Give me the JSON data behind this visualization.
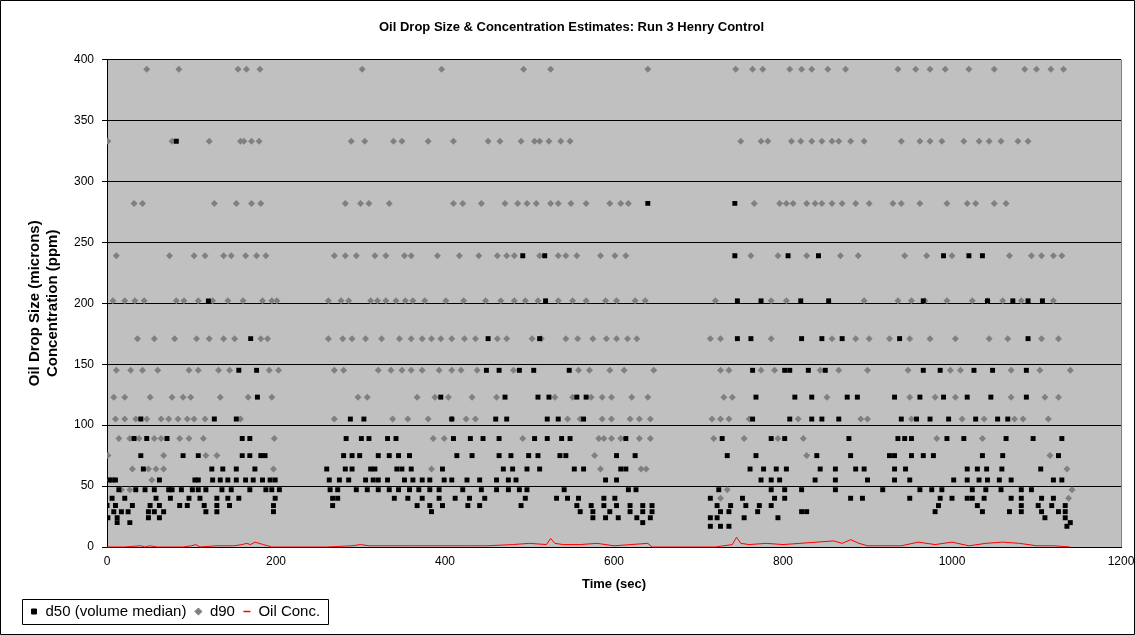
{
  "chart_data": {
    "type": "scatter",
    "title": "Oil Drop Size & Concentration Estimates: Run 3 Henry Control",
    "xlabel": "Time (sec)",
    "ylabel": "Oil Drop Size (microns)\nConcentration (ppm)",
    "xlim": [
      0,
      1200
    ],
    "xticks": [
      0,
      200,
      400,
      600,
      800,
      1000,
      1200
    ],
    "ylim": [
      0,
      400
    ],
    "yticks": [
      0,
      50,
      100,
      150,
      200,
      250,
      300,
      350,
      400
    ],
    "grid": "y",
    "legend": "bottom left",
    "series": [
      {
        "name": "d50 (volume median)",
        "type": "scatter",
        "marker": "square",
        "color": "#000000",
        "x": [
          82,
          640,
          743,
          492,
          518,
          743,
          806,
          842,
          990,
          1020,
          1036,
          120,
          519,
          746,
          774,
          821,
          854,
          966,
          1042,
          1072,
          1090,
          1107,
          170,
          451,
          512,
          746,
          762,
          822,
          846,
          870,
          938,
          1090,
          156,
          177,
          449,
          464,
          488,
          505,
          547,
          764,
          802,
          808,
          830,
          850,
          966,
          986,
          1026,
          1048,
          1088,
          178,
          395,
          471,
          510,
          523,
          556,
          567,
          768,
          814,
          834,
          876,
          888,
          932,
          962,
          990,
          1018,
          1046,
          1088,
          40,
          127,
          153,
          288,
          304,
          408,
          460,
          473,
          521,
          534,
          564,
          764,
          808,
          834,
          846,
          866,
          940,
          958,
          974,
          996,
          1028,
          1054,
          1066,
          32,
          47,
          71,
          160,
          169,
          283,
          301,
          310,
          332,
          342,
          410,
          430,
          445,
          464,
          506,
          521,
          538,
          548,
          614,
          728,
          786,
          802,
          878,
          936,
          944,
          952,
          994,
          1014,
          1064,
          1096,
          1130,
          40,
          90,
          108,
          160,
          169,
          182,
          187,
          280,
          290,
          299,
          321,
          334,
          345,
          358,
          414,
          432,
          464,
          478,
          499,
          510,
          536,
          543,
          603,
          625,
          734,
          768,
          840,
          880,
          926,
          932,
          952,
          966,
          978,
          1036,
          1060,
          1126,
          43,
          124,
          137,
          153,
          175,
          260,
          282,
          290,
          312,
          317,
          343,
          349,
          360,
          397,
          469,
          480,
          497,
          512,
          553,
          564,
          608,
          614,
          761,
          777,
          792,
          804,
          844,
          862,
          886,
          896,
          932,
          945,
          1018,
          1030,
          1041,
          1059,
          1105,
          4,
          10,
          62,
          104,
          108,
          125,
          134,
          143,
          153,
          164,
          173,
          184,
          193,
          199,
          263,
          275,
          286,
          306,
          315,
          321,
          332,
          352,
          362,
          373,
          382,
          399,
          408,
          426,
          441,
          461,
          475,
          484,
          590,
          603,
          774,
          786,
          796,
          838,
          862,
          900,
          932,
          950,
          1002,
          1018,
          1032,
          1042,
          1056,
          1070,
          1120,
          1130,
          14,
          34,
          45,
          56,
          73,
          77,
          88,
          101,
          108,
          117,
          136,
          147,
          169,
          188,
          195,
          204,
          264,
          273,
          295,
          308,
          321,
          334,
          345,
          358,
          369,
          382,
          393,
          421,
          443,
          461,
          475,
          488,
          497,
          541,
          617,
          626,
          724,
          786,
          802,
          822,
          862,
          918,
          962,
          976,
          988,
          1024,
          1040,
          1058,
          1082,
          1094,
          6,
          21,
          58,
          75,
          97,
          110,
          130,
          143,
          156,
          199,
          267,
          273,
          340,
          356,
          373,
          393,
          412,
          429,
          447,
          495,
          532,
          545,
          558,
          588,
          601,
          714,
          752,
          790,
          802,
          880,
          894,
          950,
          986,
          1000,
          1018,
          1024,
          1038,
          1070,
          1082,
          1106,
          1120,
          0,
          10,
          30,
          51,
          62,
          86,
          95,
          115,
          130,
          145,
          197,
          267,
          367,
          382,
          397,
          427,
          441,
          490,
          556,
          573,
          588,
          603,
          619,
          634,
          645,
          722,
          738,
          756,
          772,
          786,
          984,
          1030,
          1082,
          1102,
          1118,
          1134,
          8,
          17,
          25,
          49,
          56,
          67,
          117,
          130,
          197,
          384,
          560,
          575,
          595,
          619,
          634,
          645,
          726,
          736,
          770,
          822,
          828,
          980,
          1036,
          1068,
          1082,
          1106,
          1126,
          1134,
          1,
          12,
          49,
          62,
          575,
          590,
          605,
          627,
          643,
          714,
          722,
          754,
          794,
          1110,
          1134,
          12,
          27,
          634,
          1140,
          714,
          726,
          736,
          1136
        ],
        "values": [
          333,
          282,
          282,
          239,
          239,
          239,
          239,
          239,
          239,
          239,
          239,
          202,
          202,
          202,
          202,
          202,
          202,
          202,
          202,
          202,
          202,
          202,
          171,
          171,
          171,
          171,
          171,
          171,
          171,
          171,
          171,
          171,
          145,
          145,
          145,
          145,
          145,
          145,
          145,
          145,
          145,
          145,
          145,
          145,
          145,
          145,
          145,
          145,
          145,
          123,
          123,
          123,
          123,
          123,
          123,
          123,
          123,
          123,
          123,
          123,
          123,
          123,
          123,
          123,
          123,
          123,
          123,
          105,
          105,
          105,
          105,
          105,
          105,
          105,
          105,
          105,
          105,
          105,
          105,
          105,
          105,
          105,
          105,
          105,
          105,
          105,
          105,
          105,
          105,
          105,
          89,
          89,
          89,
          89,
          89,
          89,
          89,
          89,
          89,
          89,
          89,
          89,
          89,
          89,
          89,
          89,
          89,
          89,
          89,
          89,
          89,
          89,
          89,
          89,
          89,
          89,
          89,
          89,
          89,
          89,
          89,
          75,
          75,
          75,
          75,
          75,
          75,
          75,
          75,
          75,
          75,
          75,
          75,
          75,
          75,
          75,
          75,
          75,
          75,
          75,
          75,
          75,
          75,
          75,
          75,
          75,
          75,
          75,
          75,
          75,
          75,
          75,
          75,
          75,
          75,
          75,
          75,
          64,
          64,
          64,
          64,
          64,
          64,
          64,
          64,
          64,
          64,
          64,
          64,
          64,
          64,
          64,
          64,
          64,
          64,
          64,
          64,
          64,
          64,
          64,
          64,
          64,
          64,
          64,
          64,
          64,
          64,
          64,
          64,
          64,
          64,
          64,
          64,
          64,
          55,
          55,
          55,
          55,
          55,
          55,
          55,
          55,
          55,
          55,
          55,
          55,
          55,
          55,
          55,
          55,
          55,
          55,
          55,
          55,
          55,
          55,
          55,
          55,
          55,
          55,
          55,
          55,
          55,
          55,
          55,
          55,
          55,
          55,
          55,
          55,
          55,
          55,
          55,
          55,
          55,
          55,
          55,
          55,
          55,
          55,
          55,
          55,
          55,
          55,
          47,
          47,
          47,
          47,
          47,
          47,
          47,
          47,
          47,
          47,
          47,
          47,
          47,
          47,
          47,
          47,
          47,
          47,
          47,
          47,
          47,
          47,
          47,
          47,
          47,
          47,
          47,
          47,
          47,
          47,
          47,
          47,
          47,
          47,
          47,
          47,
          47,
          47,
          47,
          47,
          47,
          47,
          47,
          47,
          47,
          47,
          47,
          47,
          47,
          47,
          40,
          40,
          40,
          40,
          40,
          40,
          40,
          40,
          40,
          40,
          40,
          40,
          40,
          40,
          40,
          40,
          40,
          40,
          40,
          40,
          40,
          40,
          40,
          40,
          40,
          40,
          40,
          40,
          40,
          40,
          40,
          40,
          40,
          40,
          40,
          40,
          40,
          40,
          40,
          40,
          40,
          34,
          34,
          34,
          34,
          34,
          34,
          34,
          34,
          34,
          34,
          34,
          34,
          34,
          34,
          34,
          34,
          34,
          34,
          34,
          34,
          34,
          34,
          34,
          34,
          34,
          34,
          34,
          34,
          34,
          34,
          34,
          34,
          34,
          34,
          34,
          34,
          29,
          29,
          29,
          29,
          29,
          29,
          29,
          29,
          29,
          29,
          29,
          29,
          29,
          29,
          29,
          29,
          29,
          29,
          29,
          29,
          29,
          29,
          29,
          29,
          29,
          29,
          29,
          29,
          24,
          24,
          24,
          24,
          24,
          24,
          24,
          24,
          24,
          24,
          24,
          24,
          24,
          24,
          24,
          20,
          20,
          20,
          20,
          17,
          17,
          17,
          17
        ]
      },
      {
        "name": "d90",
        "type": "scatter",
        "marker": "diamond",
        "color": "#808080",
        "x": [
          47,
          85,
          155,
          165,
          181,
          302,
          396,
          493,
          525,
          640,
          744,
          764,
          776,
          808,
          822,
          834,
          853,
          874,
          936,
          957,
          974,
          992,
          1020,
          1050,
          1086,
          1100,
          1117,
          1132,
          1,
          77,
          121,
          158,
          162,
          171,
          180,
          289,
          305,
          339,
          349,
          380,
          410,
          451,
          465,
          490,
          506,
          512,
          523,
          537,
          548,
          750,
          774,
          782,
          810,
          821,
          834,
          846,
          858,
          866,
          880,
          896,
          940,
          962,
          974,
          988,
          1014,
          1032,
          1044,
          1058,
          1078,
          1090,
          32,
          42,
          127,
          153,
          171,
          182,
          282,
          300,
          310,
          334,
          410,
          421,
          443,
          471,
          486,
          497,
          508,
          525,
          534,
          549,
          567,
          595,
          608,
          617,
          766,
          796,
          804,
          812,
          828,
          838,
          846,
          858,
          870,
          886,
          902,
          930,
          940,
          962,
          994,
          1018,
          1028,
          1050,
          1064,
          11,
          74,
          103,
          116,
          138,
          147,
          164,
          177,
          188,
          269,
          282,
          295,
          317,
          330,
          352,
          360,
          391,
          417,
          440,
          462,
          473,
          482,
          512,
          534,
          543,
          556,
          584,
          601,
          614,
          762,
          794,
          828,
          868,
          889,
          944,
          970,
          1000,
          1068,
          1094,
          1106,
          1120,
          1130,
          7,
          21,
          33,
          44,
          82,
          91,
          108,
          125,
          143,
          161,
          184,
          195,
          201,
          262,
          277,
          286,
          312,
          320,
          330,
          342,
          353,
          362,
          376,
          401,
          422,
          448,
          466,
          482,
          495,
          510,
          534,
          551,
          567,
          590,
          603,
          625,
          637,
          720,
          786,
          804,
          896,
          936,
          952,
          968,
          994,
          1024,
          1042,
          1060,
          1082,
          1120,
          36,
          56,
          80,
          106,
          121,
          138,
          151,
          182,
          190,
          262,
          279,
          290,
          306,
          325,
          346,
          360,
          373,
          384,
          395,
          408,
          423,
          436,
          462,
          473,
          503,
          514,
          543,
          557,
          575,
          591,
          603,
          616,
          627,
          714,
          726,
          786,
          858,
          886,
          902,
          926,
          950,
          974,
          1004,
          1044,
          1066,
          1106,
          1126,
          11,
          28,
          42,
          60,
          97,
          108,
          132,
          145,
          192,
          203,
          269,
          280,
          321,
          336,
          349,
          360,
          373,
          393,
          408,
          419,
          438,
          481,
          558,
          571,
          595,
          612,
          647,
          726,
          736,
          774,
          790,
          844,
          866,
          900,
          948,
          998,
          1010,
          1070,
          1104,
          1140,
          8,
          21,
          51,
          77,
          90,
          99,
          134,
          167,
          195,
          297,
          308,
          367,
          388,
          404,
          432,
          461,
          530,
          551,
          573,
          586,
          597,
          621,
          640,
          730,
          740,
          852,
          950,
          980,
          1004,
          1070,
          1110,
          1126,
          10,
          21,
          34,
          47,
          64,
          73,
          84,
          95,
          103,
          116,
          158,
          269,
          338,
          356,
          380,
          408,
          425,
          436,
          545,
          560,
          586,
          597,
          619,
          630,
          643,
          716,
          726,
          736,
          760,
          818,
          892,
          900,
          952,
          1012,
          1038,
          1074,
          1084,
          1114,
          14,
          27,
          38,
          56,
          64,
          86,
          97,
          114,
          198,
          386,
          399,
          492,
          582,
          588,
          597,
          608,
          630,
          643,
          718,
          754,
          794,
          824,
          982,
          1036,
          1,
          67,
          117,
          130,
          577,
          828,
          1116,
          30,
          49,
          58,
          67,
          197,
          384,
          584,
          632,
          638,
          1136,
          4,
          8,
          53,
          17,
          27,
          734,
          1142,
          726,
          1138
        ],
        "values": [
          392,
          392,
          392,
          392,
          392,
          392,
          392,
          392,
          392,
          392,
          392,
          392,
          392,
          392,
          392,
          392,
          392,
          392,
          392,
          392,
          392,
          392,
          392,
          392,
          392,
          392,
          392,
          392,
          333,
          333,
          333,
          333,
          333,
          333,
          333,
          333,
          333,
          333,
          333,
          333,
          333,
          333,
          333,
          333,
          333,
          333,
          333,
          333,
          333,
          333,
          333,
          333,
          333,
          333,
          333,
          333,
          333,
          333,
          333,
          333,
          333,
          333,
          333,
          333,
          333,
          333,
          333,
          333,
          333,
          333,
          282,
          282,
          282,
          282,
          282,
          282,
          282,
          282,
          282,
          282,
          282,
          282,
          282,
          282,
          282,
          282,
          282,
          282,
          282,
          282,
          282,
          282,
          282,
          282,
          282,
          282,
          282,
          282,
          282,
          282,
          282,
          282,
          282,
          282,
          282,
          282,
          282,
          282,
          282,
          282,
          282,
          282,
          282,
          239,
          239,
          239,
          239,
          239,
          239,
          239,
          239,
          239,
          239,
          239,
          239,
          239,
          239,
          239,
          239,
          239,
          239,
          239,
          239,
          239,
          239,
          239,
          239,
          239,
          239,
          239,
          239,
          239,
          239,
          239,
          239,
          239,
          239,
          239,
          239,
          239,
          239,
          239,
          239,
          239,
          239,
          202,
          202,
          202,
          202,
          202,
          202,
          202,
          202,
          202,
          202,
          202,
          202,
          202,
          202,
          202,
          202,
          202,
          202,
          202,
          202,
          202,
          202,
          202,
          202,
          202,
          202,
          202,
          202,
          202,
          202,
          202,
          202,
          202,
          202,
          202,
          202,
          202,
          202,
          202,
          202,
          202,
          202,
          202,
          202,
          202,
          202,
          202,
          202,
          202,
          202,
          171,
          171,
          171,
          171,
          171,
          171,
          171,
          171,
          171,
          171,
          171,
          171,
          171,
          171,
          171,
          171,
          171,
          171,
          171,
          171,
          171,
          171,
          171,
          171,
          171,
          171,
          171,
          171,
          171,
          171,
          171,
          171,
          171,
          171,
          171,
          171,
          171,
          171,
          171,
          171,
          171,
          171,
          171,
          171,
          171,
          171,
          171,
          145,
          145,
          145,
          145,
          145,
          145,
          145,
          145,
          145,
          145,
          145,
          145,
          145,
          145,
          145,
          145,
          145,
          145,
          145,
          145,
          145,
          145,
          145,
          145,
          145,
          145,
          145,
          145,
          145,
          145,
          145,
          145,
          145,
          145,
          145,
          145,
          145,
          145,
          145,
          145,
          123,
          123,
          123,
          123,
          123,
          123,
          123,
          123,
          123,
          123,
          123,
          123,
          123,
          123,
          123,
          123,
          123,
          123,
          123,
          123,
          123,
          123,
          123,
          123,
          123,
          123,
          123,
          123,
          123,
          123,
          123,
          123,
          105,
          105,
          105,
          105,
          105,
          105,
          105,
          105,
          105,
          105,
          105,
          105,
          105,
          105,
          105,
          105,
          105,
          105,
          105,
          105,
          105,
          105,
          105,
          105,
          105,
          105,
          105,
          105,
          105,
          105,
          105,
          105,
          105,
          105,
          105,
          105,
          105,
          105,
          89,
          89,
          89,
          89,
          89,
          89,
          89,
          89,
          89,
          89,
          89,
          89,
          89,
          89,
          89,
          89,
          89,
          89,
          89,
          89,
          89,
          89,
          89,
          89,
          75,
          75,
          75,
          75,
          75,
          75,
          75,
          64,
          64,
          64,
          64,
          64,
          64,
          64,
          64,
          64,
          64,
          55,
          55,
          55,
          47,
          47,
          47,
          47,
          40,
          40
        ]
      },
      {
        "name": "Oil Conc.",
        "type": "line",
        "marker": "none",
        "color": "#ff0000",
        "x": [
          0,
          20,
          40,
          45,
          50,
          60,
          70,
          90,
          100,
          105,
          110,
          130,
          150,
          160,
          165,
          170,
          175,
          180,
          185,
          190,
          195,
          200,
          260,
          290,
          300,
          310,
          330,
          360,
          400,
          430,
          450,
          480,
          500,
          520,
          525,
          530,
          540,
          560,
          580,
          600,
          620,
          640,
          645,
          720,
          740,
          745,
          750,
          760,
          780,
          800,
          820,
          840,
          860,
          870,
          880,
          890,
          900,
          940,
          960,
          980,
          1000,
          1020,
          1040,
          1060,
          1080,
          1100,
          1120,
          1140
        ],
        "values": [
          0,
          0,
          1,
          0,
          1,
          0,
          0,
          0,
          1,
          2,
          0,
          1,
          1,
          2,
          3,
          2,
          4,
          3,
          2,
          1,
          0,
          0,
          0,
          1,
          2,
          1,
          1,
          1,
          1,
          1,
          1,
          2,
          3,
          2,
          7,
          3,
          2,
          2,
          3,
          1,
          2,
          3,
          0,
          0,
          2,
          8,
          3,
          2,
          3,
          2,
          3,
          4,
          5,
          3,
          6,
          3,
          1,
          1,
          4,
          2,
          4,
          1,
          3,
          4,
          3,
          1,
          1,
          0
        ]
      }
    ]
  }
}
